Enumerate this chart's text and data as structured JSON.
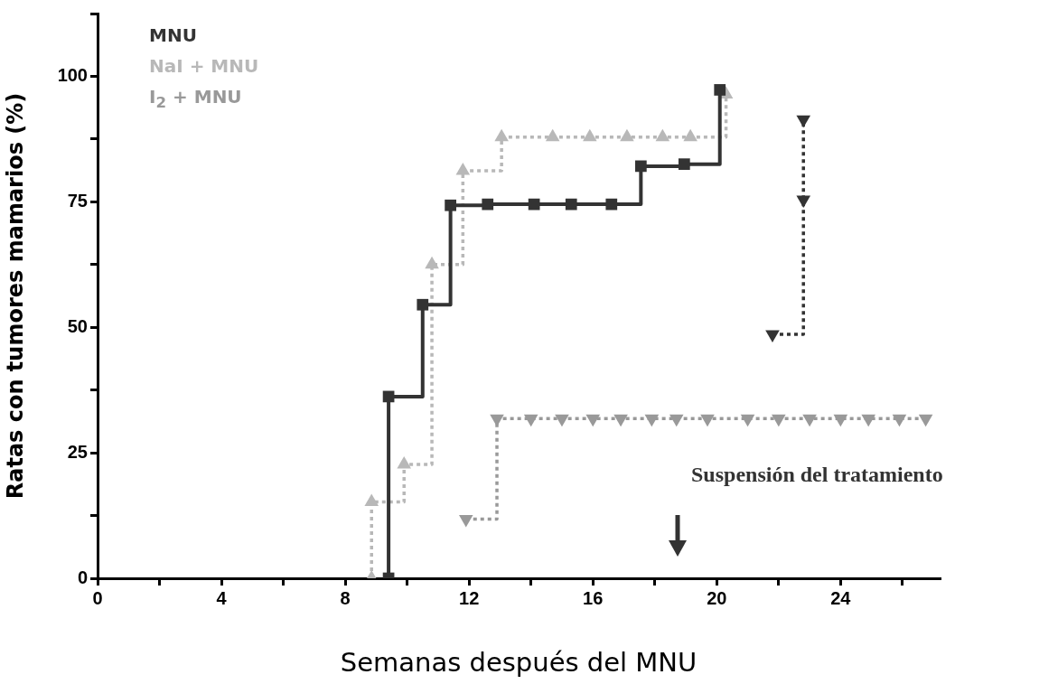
{
  "chart_data": {
    "type": "step",
    "xlabel": "Semanas después del MNU",
    "ylabel": "Ratas con tumores mamarios (%)",
    "xlim": [
      0,
      27.2
    ],
    "ylim": [
      0,
      112.5
    ],
    "xticks": [
      0,
      {
        "value": 2,
        "label": null
      },
      4,
      {
        "value": 6,
        "label": null
      },
      8,
      {
        "value": 10,
        "label": null
      },
      12,
      {
        "value": 14,
        "label": null
      },
      16,
      {
        "value": 18,
        "label": null
      },
      20,
      {
        "value": 22,
        "label": null
      },
      24,
      {
        "value": 26,
        "label": null
      }
    ],
    "yticks": [
      0,
      {
        "value": 12.5,
        "label": null
      },
      25,
      {
        "value": 37.5,
        "label": null
      },
      50,
      {
        "value": 62.5,
        "label": null
      },
      75,
      {
        "value": 87.5,
        "label": null
      },
      100,
      {
        "value": 112.5,
        "label": null
      }
    ],
    "grid": false,
    "legend": "top left",
    "series": [
      {
        "name": "MNU",
        "color": "#333333",
        "marker": "square",
        "line_style": "solid",
        "x": [
          9.4,
          9.4,
          10.5,
          11.4,
          12.6,
          14.1,
          15.3,
          16.6,
          17.55,
          18.95,
          20.1
        ],
        "values": [
          0,
          36.2,
          54.5,
          74.3,
          74.5,
          74.5,
          74.5,
          74.5,
          82.1,
          82.5,
          97.3
        ]
      },
      {
        "name": "NaI + MNU",
        "color": "#b8b8b8",
        "marker": "triangle",
        "line_style": "dotted",
        "x": [
          8.85,
          8.85,
          9.9,
          10.8,
          11.8,
          13.05,
          14.7,
          15.9,
          17.1,
          18.25,
          19.15,
          20.3
        ],
        "values": [
          0,
          15.2,
          22.7,
          62.5,
          81.2,
          87.9,
          87.9,
          87.9,
          87.9,
          87.9,
          87.9,
          96.4
        ]
      },
      {
        "name": "I$_{2}$ + MNU",
        "color": "#999999",
        "marker": "triangle-down",
        "line_style": "dotted",
        "x": [
          11.9,
          12.9,
          14.0,
          15.0,
          16.0,
          16.9,
          17.9,
          18.7,
          19.7,
          21.0,
          22.0,
          23.0,
          24.0,
          24.9,
          25.9,
          26.75
        ],
        "values": [
          11.8,
          31.8,
          31.8,
          31.8,
          31.8,
          31.8,
          31.8,
          31.8,
          31.8,
          31.8,
          31.8,
          31.8,
          31.8,
          31.8,
          31.8,
          31.8
        ]
      },
      {
        "color": "#333333",
        "marker": "triangle-down",
        "line_style": "dotted",
        "x": [
          21.8,
          22.8,
          22.8
        ],
        "values": [
          48.6,
          75.4,
          91.4
        ]
      }
    ],
    "annotations": [
      "Suspensión del tratamiento"
    ]
  }
}
